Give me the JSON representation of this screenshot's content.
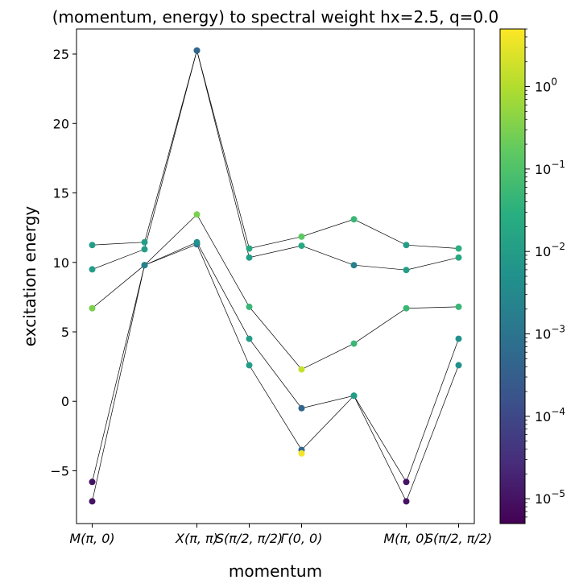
{
  "chart_data": {
    "type": "scatter",
    "title": "(momentum, energy) to spectral weight hx=2.5, q=0.0",
    "xlabel": "momentum",
    "ylabel": "excitation energy",
    "ylim": [
      -8.8,
      26.8
    ],
    "xlim": [
      -0.3,
      7.3
    ],
    "x_ticks": [
      {
        "x": 0,
        "label": "M(π, 0)"
      },
      {
        "x": 2,
        "label": "X(π, π)"
      },
      {
        "x": 3,
        "label": "S(π/2, π/2)"
      },
      {
        "x": 4,
        "label": "Γ(0, 0)"
      },
      {
        "x": 6,
        "label": "M(π, 0)"
      },
      {
        "x": 7,
        "label": "S(π/2, π/2)"
      }
    ],
    "y_ticks": [
      -5,
      0,
      5,
      10,
      15,
      20,
      25
    ],
    "colorbar": {
      "scale": "log",
      "min": 5e-06,
      "max": 5,
      "colormap": "viridis",
      "ticks": [
        {
          "value": 1e-05,
          "base": "10",
          "exp": "−5"
        },
        {
          "value": 0.0001,
          "base": "10",
          "exp": "−4"
        },
        {
          "value": 0.001,
          "base": "10",
          "exp": "−3"
        },
        {
          "value": 0.01,
          "base": "10",
          "exp": "−2"
        },
        {
          "value": 0.1,
          "base": "10",
          "exp": "−1"
        },
        {
          "value": 1,
          "base": "10",
          "exp": "0"
        }
      ]
    },
    "series": [
      {
        "points": [
          [
            0,
            11.25,
            0.01
          ],
          [
            1,
            11.45,
            0.01
          ],
          [
            2,
            25.25,
            0.0005
          ],
          [
            3,
            11.0,
            0.02
          ],
          [
            4,
            11.85,
            0.15
          ],
          [
            5,
            13.1,
            0.05
          ],
          [
            6,
            11.25,
            0.01
          ],
          [
            7,
            11.0,
            0.03
          ]
        ]
      },
      {
        "points": [
          [
            0,
            9.5,
            0.01
          ],
          [
            1,
            10.95,
            0.01
          ],
          [
            2,
            25.25,
            0.0005
          ],
          [
            3,
            10.35,
            0.01
          ],
          [
            4,
            11.2,
            0.02
          ],
          [
            5,
            9.8,
            0.002
          ],
          [
            6,
            9.45,
            0.01
          ],
          [
            7,
            10.35,
            0.02
          ]
        ]
      },
      {
        "points": [
          [
            0,
            6.7,
            0.3
          ],
          [
            1,
            9.8,
            0.002
          ],
          [
            2,
            13.45,
            0.3
          ],
          [
            3,
            6.8,
            0.05
          ],
          [
            4,
            2.3,
            1.5
          ],
          [
            5,
            4.15,
            0.05
          ],
          [
            6,
            6.7,
            0.05
          ],
          [
            7,
            6.8,
            0.05
          ]
        ]
      },
      {
        "points": [
          [
            0,
            -5.8,
            1e-05
          ],
          [
            1,
            9.8,
            0.002
          ],
          [
            2,
            11.45,
            0.005
          ],
          [
            3,
            4.5,
            0.01
          ],
          [
            4,
            -0.5,
            0.0005
          ],
          [
            5,
            0.4,
            0.01
          ],
          [
            6,
            -5.8,
            1e-05
          ],
          [
            7,
            4.5,
            0.005
          ]
        ]
      },
      {
        "points": [
          [
            0,
            -7.2,
            1e-05
          ],
          [
            1,
            9.8,
            0.002
          ],
          [
            2,
            11.3,
            0.001
          ],
          [
            3,
            2.6,
            0.01
          ],
          [
            4,
            -3.5,
            0.0005
          ],
          [
            5,
            0.4,
            0.005
          ],
          [
            6,
            -7.2,
            1e-05
          ],
          [
            7,
            2.6,
            0.005
          ]
        ]
      }
    ],
    "extra_points": [
      [
        4,
        -3.75,
        4.0
      ]
    ]
  }
}
